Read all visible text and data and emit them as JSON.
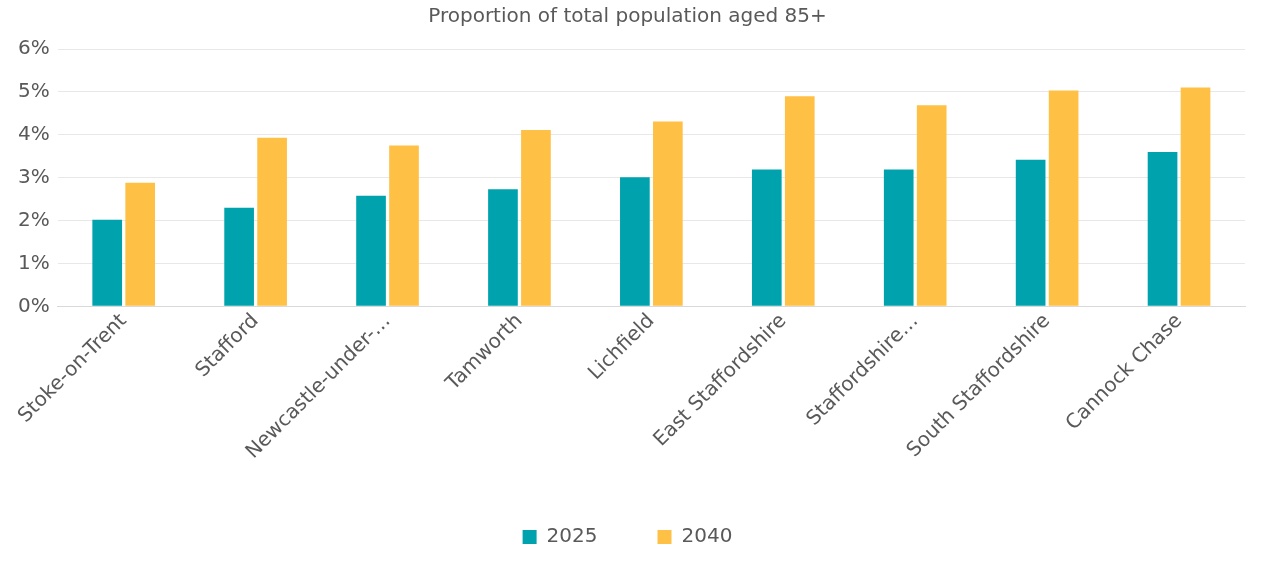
{
  "chart_data": {
    "type": "bar",
    "title": "Proportion of total population aged 85+",
    "categories": [
      "Stoke-on-Trent",
      "Stafford",
      "Newcastle-under-…",
      "Tamworth",
      "Lichfield",
      "East Staffordshire",
      "Staffordshire…",
      "South Staffordshire",
      "Cannock Chase"
    ],
    "series": [
      {
        "name": "2025",
        "color": "#00a3ad",
        "values": [
          2.02,
          2.3,
          2.58,
          2.73,
          3.01,
          3.19,
          3.19,
          3.42,
          3.6
        ]
      },
      {
        "name": "2040",
        "color": "#ffc145",
        "values": [
          2.88,
          3.93,
          3.75,
          4.11,
          4.31,
          4.9,
          4.69,
          5.03,
          5.1
        ]
      }
    ],
    "ylim": [
      0,
      6
    ],
    "yticks": [
      {
        "value": 0,
        "label": "0%"
      },
      {
        "value": 1,
        "label": "1%"
      },
      {
        "value": 2,
        "label": "2%"
      },
      {
        "value": 3,
        "label": "3%"
      },
      {
        "value": 4,
        "label": "4%"
      },
      {
        "value": 5,
        "label": "5%"
      },
      {
        "value": 6,
        "label": "6%"
      }
    ],
    "grid": "y",
    "legend": "bottom"
  }
}
